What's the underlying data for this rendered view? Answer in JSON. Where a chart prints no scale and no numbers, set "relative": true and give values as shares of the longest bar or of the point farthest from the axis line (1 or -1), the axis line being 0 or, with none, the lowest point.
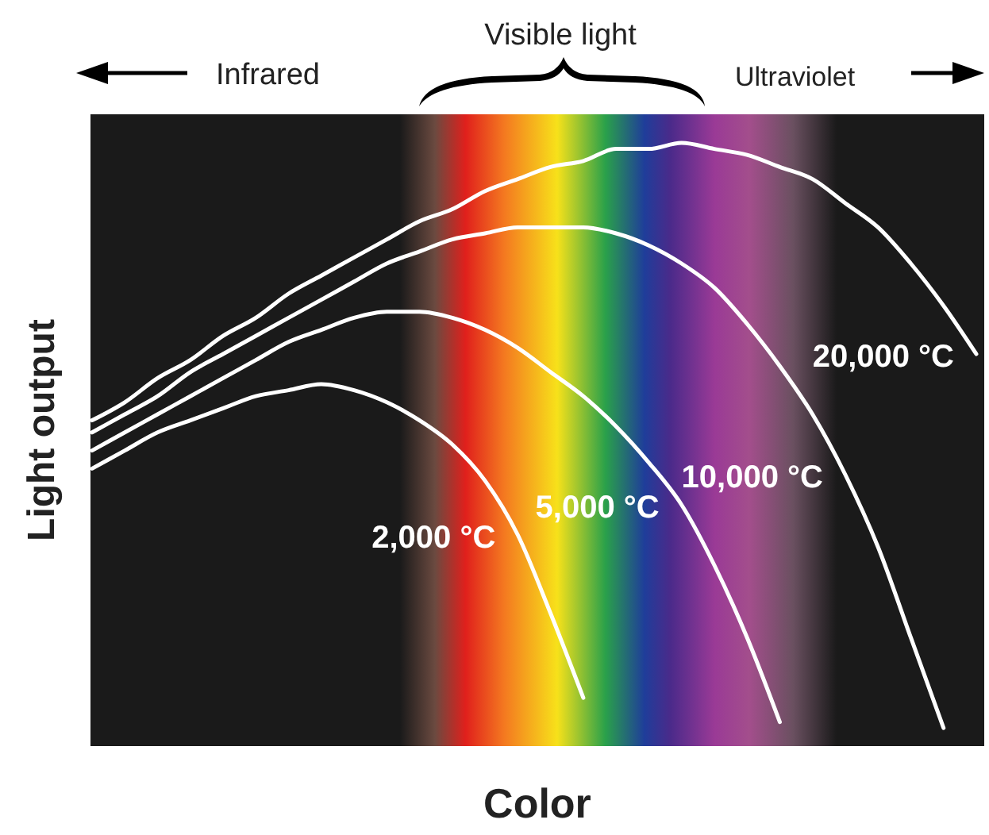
{
  "chart_data": {
    "type": "line",
    "relative": true,
    "xlabel": "Color",
    "ylabel": "Light output",
    "annotations": [
      "Infrared",
      "Visible light",
      "Ultraviolet"
    ],
    "categories": [
      null,
      null,
      null,
      null,
      null,
      null,
      null,
      null,
      null,
      null,
      null,
      null,
      null,
      null,
      null,
      null,
      null,
      null,
      null,
      null,
      null,
      null,
      null,
      null,
      null,
      null,
      null,
      null
    ],
    "series": [
      {
        "name": "20,000 °C",
        "color": "#ffffff",
        "values": [
          0.54,
          0.57,
          0.61,
          0.64,
          0.68,
          0.71,
          0.75,
          0.78,
          0.81,
          0.84,
          0.87,
          0.89,
          0.92,
          0.94,
          0.96,
          0.97,
          0.99,
          0.99,
          1,
          0.99,
          0.98,
          0.96,
          0.94,
          0.9,
          0.86,
          0.8,
          0.73,
          0.65
        ]
      },
      {
        "name": "10,000 °C",
        "color": "#ffffff",
        "values": [
          0.52,
          0.55,
          0.58,
          0.62,
          0.65,
          0.68,
          0.71,
          0.74,
          0.77,
          0.8,
          0.82,
          0.84,
          0.85,
          0.86,
          0.86,
          0.86,
          0.85,
          0.83,
          0.8,
          0.76,
          0.7,
          0.63,
          0.55,
          0.45,
          0.33,
          0.18,
          0.03,
          null
        ]
      },
      {
        "name": "5,000 °C",
        "color": "#ffffff",
        "values": [
          0.49,
          0.52,
          0.55,
          0.58,
          0.61,
          0.64,
          0.67,
          0.69,
          0.71,
          0.72,
          0.72,
          0.71,
          0.69,
          0.66,
          0.62,
          0.58,
          0.53,
          0.47,
          0.4,
          0.3,
          0.18,
          0.04,
          null,
          null,
          null,
          null,
          null,
          null
        ]
      },
      {
        "name": "2,000 °C",
        "color": "#ffffff",
        "values": [
          0.46,
          0.49,
          0.52,
          0.54,
          0.56,
          0.58,
          0.59,
          0.6,
          0.59,
          0.57,
          0.54,
          0.5,
          0.44,
          0.35,
          0.22,
          0.08,
          null,
          null,
          null,
          null,
          null,
          null,
          null,
          null,
          null,
          null,
          null,
          null
        ]
      }
    ]
  }
}
